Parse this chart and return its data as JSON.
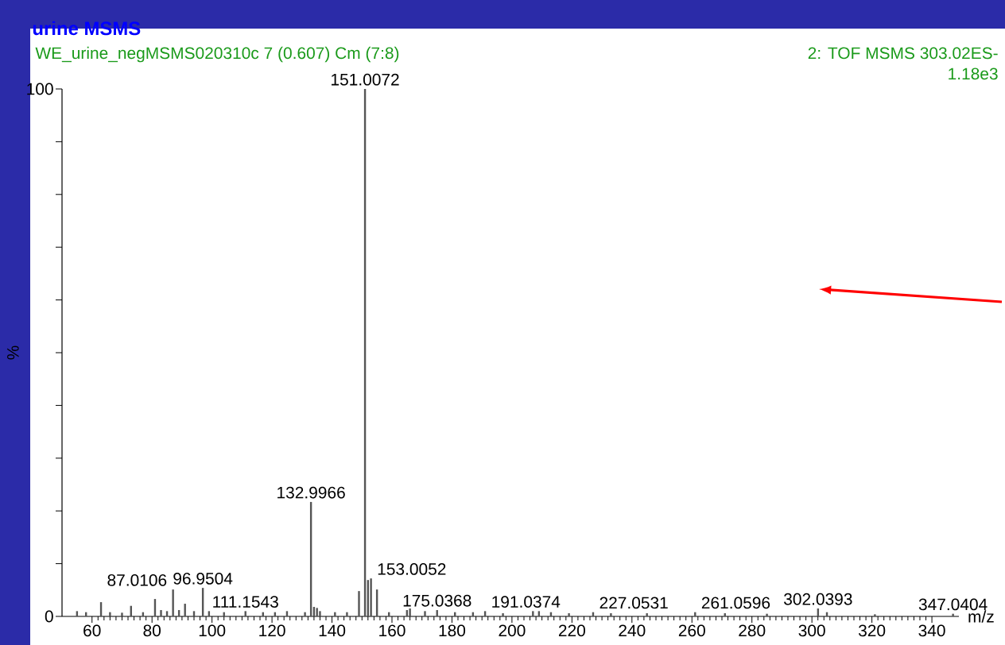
{
  "chart_data": {
    "type": "bar",
    "title": "urine MSMS",
    "subtitle": "WE_urine_negMSMS020310c 7 (0.607) Cm (7:8)",
    "xlabel": "m/z",
    "ylabel": "%",
    "color": "#555555",
    "x": [
      55,
      58,
      63,
      66,
      70,
      73,
      77,
      81,
      83,
      85,
      87.0106,
      89,
      91,
      94,
      96.9504,
      99,
      104,
      111.1543,
      117,
      121,
      125,
      131,
      132.9966,
      134,
      135,
      136,
      141,
      145,
      149,
      151.0072,
      152,
      153.0052,
      155,
      159,
      165,
      166,
      171,
      175.0368,
      181,
      187,
      191.0374,
      197,
      207,
      209,
      213,
      219,
      227.0531,
      233,
      245,
      261.0596,
      271,
      285,
      302.0393,
      305,
      321,
      347.0404
    ],
    "values": [
      1.0,
      0.8,
      2.7,
      0.8,
      0.7,
      2.0,
      0.8,
      3.3,
      1.2,
      1.0,
      5.1,
      1.2,
      2.4,
      1.0,
      5.4,
      1.0,
      0.8,
      1.0,
      0.8,
      0.8,
      1.0,
      0.8,
      21.7,
      1.8,
      1.6,
      1.0,
      0.8,
      0.8,
      4.8,
      100,
      6.9,
      7.2,
      5.1,
      0.8,
      1.2,
      1.5,
      1.0,
      1.2,
      0.8,
      0.8,
      1.0,
      0.6,
      1.0,
      1.0,
      0.8,
      0.6,
      0.8,
      0.6,
      0.6,
      0.8,
      0.6,
      0.5,
      1.5,
      0.8,
      0.4,
      0.5
    ],
    "xlim": [
      50,
      349
    ],
    "ylim": [
      0,
      100
    ],
    "xticks": [
      60,
      80,
      100,
      120,
      140,
      160,
      180,
      200,
      220,
      240,
      260,
      280,
      300,
      320,
      340
    ],
    "yticks": [
      0,
      {
        "value": 10,
        "label": null
      },
      {
        "value": 20,
        "label": null
      },
      {
        "value": 30,
        "label": null
      },
      {
        "value": 40,
        "label": null
      },
      {
        "value": 50,
        "label": null
      },
      {
        "value": 60,
        "label": null
      },
      {
        "value": 70,
        "label": null
      },
      {
        "value": 80,
        "label": null
      },
      {
        "value": 90,
        "label": null
      },
      100
    ],
    "annotations": [
      "2: TOF MSMS 303.02ES-",
      "1.18e3",
      {
        "text": "151.0072",
        "x": 151.0072,
        "y": 100
      },
      {
        "text": "132.9966",
        "x": 132.9966,
        "y": 21.7
      },
      {
        "text": "153.0052",
        "x": 153.0052,
        "y": 7.2
      },
      {
        "text": "96.9504",
        "x": 96.9504,
        "y": 5.4
      },
      {
        "text": "87.0106",
        "x": 87.0106,
        "y": 5.1
      },
      {
        "text": "111.1543",
        "x": 111.1543,
        "y": 1.0
      },
      {
        "text": "175.0368",
        "x": 175.0368,
        "y": 1.2
      },
      {
        "text": "191.0374",
        "x": 191.0374,
        "y": 1.0
      },
      {
        "text": "227.0531",
        "x": 227.0531,
        "y": 0.8
      },
      {
        "text": "261.0596",
        "x": 261.0596,
        "y": 0.8
      },
      {
        "text": "302.0393",
        "x": 302.0393,
        "y": 1.5
      },
      {
        "text": "347.0404",
        "x": 347.0404,
        "y": 0.5
      }
    ]
  }
}
